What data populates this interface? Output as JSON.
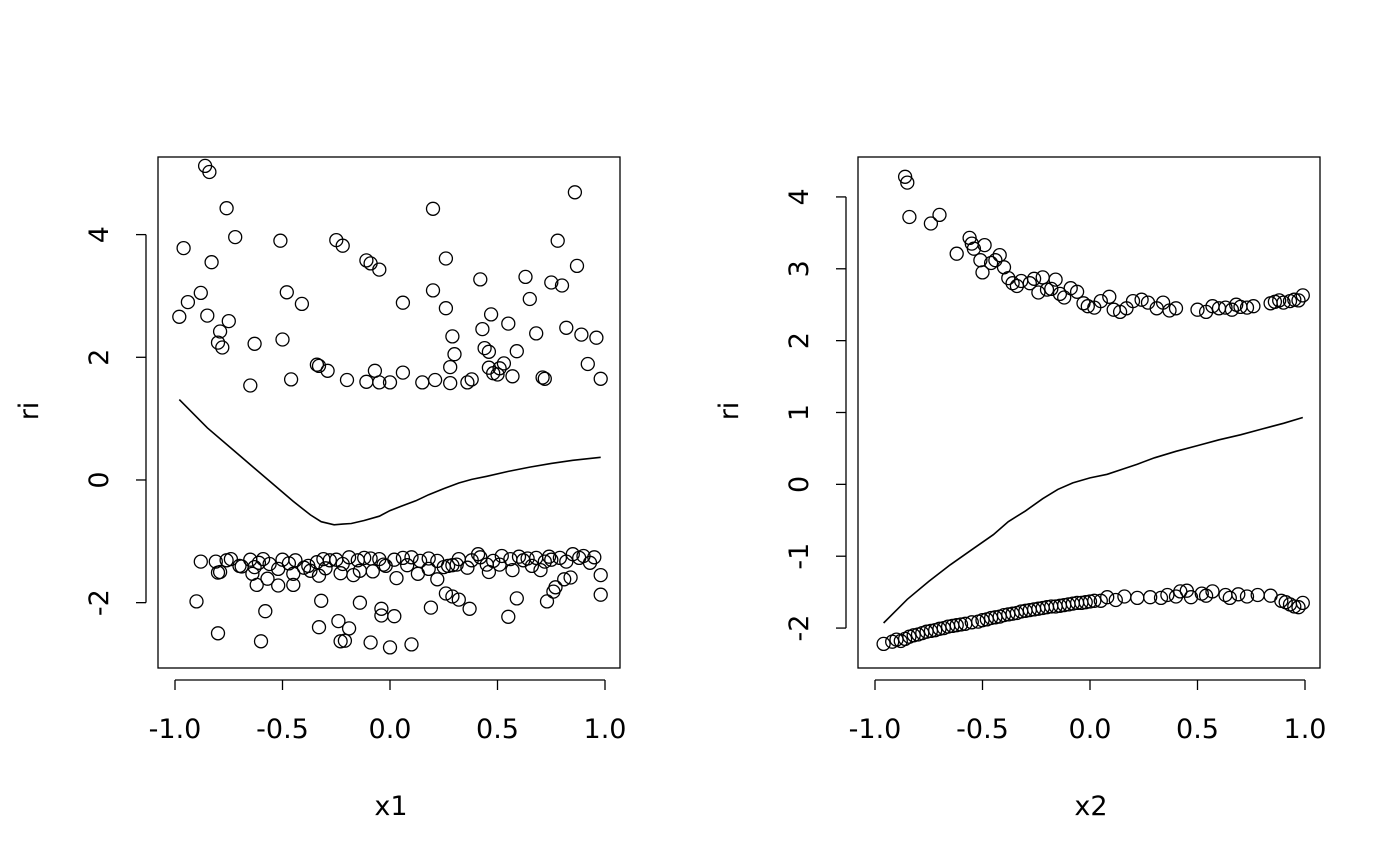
{
  "chart_data": [
    {
      "type": "scatter",
      "title": "",
      "xlabel": "x1",
      "ylabel": "ri",
      "xlim": [
        -1.0,
        1.0
      ],
      "ylim": [
        -3,
        5.2
      ],
      "xticks": [
        "-1.0",
        "-0.5",
        "0.0",
        "0.5",
        "1.0"
      ],
      "yticks": [
        "-2",
        "0",
        "2",
        "4"
      ],
      "grid": false,
      "legend": "none",
      "series": [
        {
          "kind": "points",
          "x": [
            -0.98,
            -0.96,
            -0.94,
            -0.88,
            -0.86,
            -0.85,
            -0.84,
            -0.83,
            -0.8,
            -0.79,
            -0.78,
            -0.76,
            -0.75,
            -0.72,
            -0.65,
            -0.63,
            -0.51,
            -0.5,
            -0.48,
            -0.46,
            -0.41,
            -0.34,
            -0.33,
            -0.29,
            -0.25,
            -0.22,
            -0.2,
            -0.11,
            -0.11,
            -0.09,
            -0.07,
            -0.05,
            -0.05,
            0.0,
            0.06,
            0.06,
            0.15,
            0.2,
            0.2,
            0.21,
            0.26,
            0.26,
            0.28,
            0.28,
            0.29,
            0.3,
            0.36,
            0.38,
            0.42,
            0.43,
            0.44,
            0.46,
            0.46,
            0.47,
            0.48,
            0.5,
            0.51,
            0.53,
            0.55,
            0.57,
            0.59,
            0.63,
            0.65,
            0.68,
            0.71,
            0.72,
            0.75,
            0.78,
            0.8,
            0.82,
            0.86,
            0.87,
            0.89,
            0.92,
            0.96,
            0.98,
            -0.88,
            -0.81,
            -0.79,
            -0.74,
            -0.7,
            -0.65,
            -0.63,
            -0.61,
            -0.59,
            -0.56,
            -0.52,
            -0.5,
            -0.47,
            -0.44,
            -0.4,
            -0.37,
            -0.34,
            -0.31,
            -0.28,
            -0.25,
            -0.22,
            -0.19,
            -0.15,
            -0.12,
            -0.09,
            -0.05,
            -0.02,
            0.02,
            0.06,
            0.1,
            0.14,
            0.18,
            0.22,
            0.25,
            0.29,
            0.32,
            0.38,
            0.42,
            0.45,
            0.48,
            0.52,
            0.56,
            0.6,
            0.64,
            0.68,
            0.72,
            0.75,
            0.79,
            0.82,
            0.85,
            0.9,
            0.95,
            -0.8,
            -0.76,
            -0.69,
            -0.64,
            -0.57,
            -0.52,
            -0.45,
            -0.38,
            -0.33,
            -0.3,
            -0.23,
            -0.17,
            -0.14,
            -0.08,
            -0.03,
            0.03,
            0.08,
            0.13,
            0.18,
            0.22,
            0.27,
            0.31,
            0.36,
            0.41,
            0.46,
            0.51,
            0.57,
            0.62,
            0.66,
            0.7,
            0.74,
            0.77,
            0.81,
            0.84,
            0.88,
            0.93,
            0.98,
            -0.9,
            -0.8,
            -0.62,
            -0.6,
            -0.58,
            -0.45,
            -0.33,
            -0.32,
            -0.24,
            -0.23,
            -0.21,
            -0.19,
            -0.14,
            -0.09,
            -0.04,
            -0.04,
            0.0,
            0.02,
            0.1,
            0.19,
            0.26,
            0.29,
            0.32,
            0.37,
            0.55,
            0.59,
            0.73,
            0.76,
            0.98
          ],
          "y": [
            2.66,
            3.78,
            2.9,
            3.05,
            5.12,
            2.68,
            5.02,
            3.55,
            2.24,
            2.42,
            2.16,
            4.43,
            2.59,
            3.96,
            1.54,
            2.22,
            3.9,
            2.29,
            3.06,
            1.64,
            2.87,
            1.88,
            1.86,
            1.78,
            3.91,
            3.82,
            1.63,
            3.58,
            1.6,
            3.53,
            1.78,
            3.43,
            1.59,
            1.59,
            2.89,
            1.75,
            1.59,
            3.09,
            4.42,
            1.63,
            3.61,
            2.8,
            1.84,
            1.58,
            2.34,
            2.05,
            1.59,
            1.64,
            3.27,
            2.46,
            2.15,
            1.83,
            2.09,
            2.7,
            1.74,
            1.72,
            1.82,
            1.9,
            2.55,
            1.69,
            2.1,
            3.31,
            2.95,
            2.39,
            1.67,
            1.65,
            3.22,
            3.9,
            3.17,
            2.48,
            4.69,
            3.49,
            2.37,
            1.89,
            2.32,
            1.65,
            -1.33,
            -1.33,
            -1.5,
            -1.29,
            -1.4,
            -1.3,
            -1.42,
            -1.35,
            -1.29,
            -1.37,
            -1.45,
            -1.3,
            -1.36,
            -1.31,
            -1.43,
            -1.48,
            -1.34,
            -1.29,
            -1.31,
            -1.3,
            -1.37,
            -1.26,
            -1.31,
            -1.27,
            -1.28,
            -1.29,
            -1.4,
            -1.3,
            -1.27,
            -1.26,
            -1.32,
            -1.28,
            -1.32,
            -1.42,
            -1.39,
            -1.29,
            -1.31,
            -1.26,
            -1.38,
            -1.32,
            -1.24,
            -1.29,
            -1.25,
            -1.28,
            -1.27,
            -1.33,
            -1.3,
            -1.27,
            -1.33,
            -1.21,
            -1.24,
            -1.26,
            -1.51,
            -1.31,
            -1.41,
            -1.53,
            -1.61,
            -1.72,
            -1.53,
            -1.4,
            -1.56,
            -1.44,
            -1.52,
            -1.55,
            -1.48,
            -1.49,
            -1.38,
            -1.6,
            -1.39,
            -1.53,
            -1.45,
            -1.62,
            -1.4,
            -1.38,
            -1.43,
            -1.21,
            -1.5,
            -1.38,
            -1.47,
            -1.31,
            -1.4,
            -1.47,
            -1.25,
            -1.75,
            -1.62,
            -1.59,
            -1.27,
            -1.35,
            -1.55,
            -1.98,
            -2.5,
            -1.71,
            -2.63,
            -2.14,
            -1.71,
            -2.4,
            -1.97,
            -2.3,
            -2.63,
            -2.62,
            -2.42,
            -2.0,
            -2.65,
            -2.1,
            -2.21,
            -2.73,
            -2.22,
            -2.68,
            -2.08,
            -1.85,
            -1.9,
            -1.95,
            -2.1,
            -2.23,
            -1.93,
            -1.98,
            -1.82,
            -1.87
          ]
        },
        {
          "kind": "line",
          "x": [
            -0.98,
            -0.85,
            -0.7,
            -0.55,
            -0.45,
            -0.37,
            -0.32,
            -0.26,
            -0.22,
            -0.18,
            -0.12,
            -0.05,
            0.0,
            0.05,
            0.12,
            0.18,
            0.25,
            0.32,
            0.38,
            0.45,
            0.55,
            0.65,
            0.75,
            0.85,
            0.98
          ],
          "y": [
            1.31,
            0.85,
            0.4,
            -0.05,
            -0.35,
            -0.57,
            -0.68,
            -0.73,
            -0.72,
            -0.71,
            -0.66,
            -0.59,
            -0.5,
            -0.43,
            -0.34,
            -0.24,
            -0.14,
            -0.05,
            0.01,
            0.06,
            0.14,
            0.21,
            0.27,
            0.32,
            0.37
          ]
        }
      ]
    },
    {
      "type": "scatter",
      "title": "",
      "xlabel": "x2",
      "ylabel": "ri",
      "xlim": [
        -1.0,
        1.0
      ],
      "ylim": [
        -2.5,
        4.5
      ],
      "xticks": [
        "-1.0",
        "-0.5",
        "0.0",
        "0.5",
        "1.0"
      ],
      "yticks": [
        "-2",
        "-1",
        "0",
        "1",
        "2",
        "3",
        "4"
      ],
      "grid": false,
      "legend": "none",
      "series": [
        {
          "kind": "points",
          "x": [
            -0.86,
            -0.85,
            -0.84,
            -0.74,
            -0.7,
            -0.62,
            -0.56,
            -0.55,
            -0.54,
            -0.51,
            -0.5,
            -0.49,
            -0.46,
            -0.44,
            -0.42,
            -0.4,
            -0.38,
            -0.36,
            -0.34,
            -0.32,
            -0.28,
            -0.26,
            -0.24,
            -0.22,
            -0.2,
            -0.18,
            -0.16,
            -0.14,
            -0.12,
            -0.09,
            -0.06,
            -0.03,
            -0.01,
            0.02,
            0.05,
            0.09,
            0.11,
            0.14,
            0.17,
            0.2,
            0.24,
            0.27,
            0.31,
            0.34,
            0.37,
            0.4,
            0.5,
            0.54,
            0.57,
            0.6,
            0.63,
            0.66,
            0.68,
            0.7,
            0.73,
            0.76,
            0.84,
            0.86,
            0.88,
            0.9,
            0.93,
            0.95,
            0.97,
            0.99,
            -0.96,
            -0.92,
            -0.9,
            -0.88,
            -0.86,
            -0.84,
            -0.82,
            -0.8,
            -0.78,
            -0.76,
            -0.74,
            -0.72,
            -0.7,
            -0.68,
            -0.66,
            -0.64,
            -0.62,
            -0.6,
            -0.58,
            -0.55,
            -0.52,
            -0.5,
            -0.48,
            -0.46,
            -0.44,
            -0.42,
            -0.4,
            -0.38,
            -0.36,
            -0.34,
            -0.32,
            -0.3,
            -0.28,
            -0.26,
            -0.24,
            -0.22,
            -0.2,
            -0.18,
            -0.16,
            -0.14,
            -0.12,
            -0.1,
            -0.08,
            -0.06,
            -0.04,
            -0.02,
            0.0,
            0.02,
            0.05,
            0.08,
            0.12,
            0.16,
            0.22,
            0.28,
            0.33,
            0.36,
            0.4,
            0.42,
            0.45,
            0.47,
            0.52,
            0.54,
            0.57,
            0.63,
            0.65,
            0.69,
            0.73,
            0.78,
            0.84,
            0.89,
            0.91,
            0.93,
            0.95,
            0.97,
            0.99
          ],
          "y": [
            4.28,
            4.2,
            3.72,
            3.63,
            3.75,
            3.21,
            3.43,
            3.35,
            3.28,
            3.12,
            2.95,
            3.33,
            3.08,
            3.12,
            3.19,
            3.02,
            2.87,
            2.8,
            2.76,
            2.83,
            2.8,
            2.86,
            2.67,
            2.88,
            2.71,
            2.72,
            2.85,
            2.65,
            2.6,
            2.73,
            2.68,
            2.52,
            2.48,
            2.46,
            2.55,
            2.61,
            2.43,
            2.4,
            2.45,
            2.55,
            2.57,
            2.53,
            2.45,
            2.53,
            2.42,
            2.45,
            2.43,
            2.4,
            2.48,
            2.45,
            2.46,
            2.43,
            2.5,
            2.47,
            2.46,
            2.48,
            2.52,
            2.54,
            2.56,
            2.53,
            2.55,
            2.57,
            2.56,
            2.63,
            -2.22,
            -2.19,
            -2.16,
            -2.18,
            -2.15,
            -2.12,
            -2.1,
            -2.09,
            -2.07,
            -2.05,
            -2.04,
            -2.03,
            -2.01,
            -2.0,
            -1.98,
            -1.97,
            -1.96,
            -1.95,
            -1.94,
            -1.92,
            -1.91,
            -1.89,
            -1.88,
            -1.86,
            -1.85,
            -1.84,
            -1.82,
            -1.81,
            -1.8,
            -1.79,
            -1.77,
            -1.76,
            -1.75,
            -1.74,
            -1.73,
            -1.72,
            -1.71,
            -1.7,
            -1.7,
            -1.69,
            -1.68,
            -1.67,
            -1.66,
            -1.65,
            -1.65,
            -1.64,
            -1.63,
            -1.62,
            -1.62,
            -1.57,
            -1.61,
            -1.56,
            -1.58,
            -1.57,
            -1.58,
            -1.54,
            -1.56,
            -1.49,
            -1.48,
            -1.57,
            -1.52,
            -1.55,
            -1.49,
            -1.54,
            -1.58,
            -1.53,
            -1.56,
            -1.54,
            -1.55,
            -1.62,
            -1.64,
            -1.67,
            -1.7,
            -1.71,
            -1.65
          ]
        },
        {
          "kind": "line",
          "x": [
            -0.96,
            -0.85,
            -0.75,
            -0.65,
            -0.55,
            -0.45,
            -0.38,
            -0.3,
            -0.22,
            -0.15,
            -0.08,
            0.0,
            0.08,
            0.15,
            0.22,
            0.3,
            0.4,
            0.5,
            0.6,
            0.7,
            0.8,
            0.9,
            0.99
          ],
          "y": [
            -1.93,
            -1.6,
            -1.35,
            -1.12,
            -0.91,
            -0.7,
            -0.52,
            -0.37,
            -0.2,
            -0.07,
            0.02,
            0.09,
            0.14,
            0.21,
            0.28,
            0.37,
            0.46,
            0.54,
            0.62,
            0.69,
            0.77,
            0.85,
            0.93
          ]
        }
      ]
    }
  ]
}
